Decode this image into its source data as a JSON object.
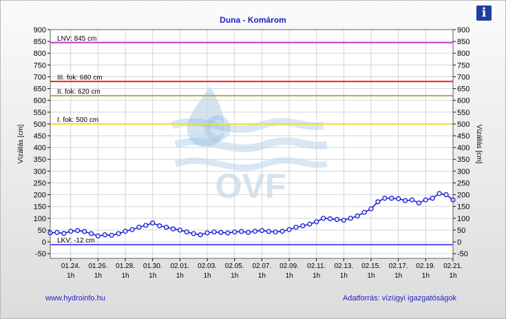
{
  "title": "Duna - Komárom",
  "info_icon": "i",
  "footer": {
    "url": "www.hydroinfo.hu",
    "source": "Adatforrás: vízügyi igazgatóságok"
  },
  "colors": {
    "lnv": "#cc44cc",
    "fok3": "#ee1c1c",
    "fok2": "#b8a640",
    "fok1": "#f0e020",
    "lkv": "#5050ee",
    "series": "#1010d0",
    "watermark": "#7fb0d8",
    "plot_bg": "#ffffff",
    "axis_text": "#000000"
  },
  "watermark_text": "OVF",
  "chart_data": {
    "type": "line",
    "title": "Duna - Komárom",
    "ylabel": "Vízállás [cm]",
    "xlabel": "",
    "ylim": [
      -70,
      900
    ],
    "y_ticks": [
      -50,
      0,
      50,
      100,
      150,
      200,
      250,
      300,
      350,
      400,
      450,
      500,
      550,
      600,
      650,
      700,
      750,
      800,
      850,
      900
    ],
    "x_ticks": [
      {
        "day": 1.5,
        "label": "01.24.",
        "sub": "1h"
      },
      {
        "day": 3.5,
        "label": "01.26.",
        "sub": "1h"
      },
      {
        "day": 5.5,
        "label": "01.28.",
        "sub": "1h"
      },
      {
        "day": 7.5,
        "label": "01.30.",
        "sub": "1h"
      },
      {
        "day": 9.5,
        "label": "02.01.",
        "sub": "1h"
      },
      {
        "day": 11.5,
        "label": "02.03.",
        "sub": "1h"
      },
      {
        "day": 13.5,
        "label": "02.05.",
        "sub": "1h"
      },
      {
        "day": 15.5,
        "label": "02.07.",
        "sub": "1h"
      },
      {
        "day": 17.5,
        "label": "02.09.",
        "sub": "1h"
      },
      {
        "day": 19.5,
        "label": "02.11.",
        "sub": "1h"
      },
      {
        "day": 21.5,
        "label": "02.13.",
        "sub": "1h"
      },
      {
        "day": 23.5,
        "label": "02.15.",
        "sub": "1h"
      },
      {
        "day": 25.5,
        "label": "02.17.",
        "sub": "1h"
      },
      {
        "day": 27.5,
        "label": "02.19.",
        "sub": "1h"
      },
      {
        "day": 29.5,
        "label": "02.21.",
        "sub": "1h"
      }
    ],
    "x_range": [
      0,
      29.5
    ],
    "thresholds": [
      {
        "name": "LNV",
        "label": "LNV: 845 cm",
        "value": 845,
        "color_key": "lnv"
      },
      {
        "name": "III. fok",
        "label": "III. fok: 680 cm",
        "value": 680,
        "color_key": "fok3"
      },
      {
        "name": "II. fok",
        "label": "II. fok: 620 cm",
        "value": 620,
        "color_key": "fok2"
      },
      {
        "name": "I. fok",
        "label": "I. fok: 500 cm",
        "value": 500,
        "color_key": "fok1"
      },
      {
        "name": "LKV",
        "label": "LKV: -12 cm",
        "value": -12,
        "color_key": "lkv"
      }
    ],
    "series": [
      {
        "x": [
          0,
          0.5,
          1,
          1.5,
          2,
          2.5,
          3,
          3.5,
          4,
          4.5,
          5,
          5.5,
          6,
          6.5,
          7,
          7.5,
          8,
          8.5,
          9,
          9.5,
          10,
          10.5,
          11,
          11.5,
          12,
          12.5,
          13,
          13.5,
          14,
          14.5,
          15,
          15.5,
          16,
          16.5,
          17,
          17.5,
          18,
          18.5,
          19,
          19.5,
          20,
          20.5,
          21,
          21.5,
          22,
          22.5,
          23,
          23.5,
          24,
          24.5,
          25,
          25.5,
          26,
          26.5,
          27,
          27.5,
          28,
          28.5,
          29,
          29.5
        ],
        "y": [
          38,
          40,
          36,
          45,
          48,
          44,
          35,
          25,
          30,
          28,
          35,
          45,
          52,
          62,
          70,
          80,
          68,
          62,
          55,
          50,
          42,
          35,
          30,
          38,
          42,
          40,
          38,
          42,
          44,
          40,
          45,
          48,
          44,
          42,
          45,
          52,
          62,
          68,
          75,
          85,
          100,
          98,
          95,
          92,
          100,
          110,
          125,
          140,
          170,
          185,
          185,
          183,
          175,
          178,
          165,
          178,
          185,
          205,
          200,
          178
        ]
      }
    ]
  }
}
